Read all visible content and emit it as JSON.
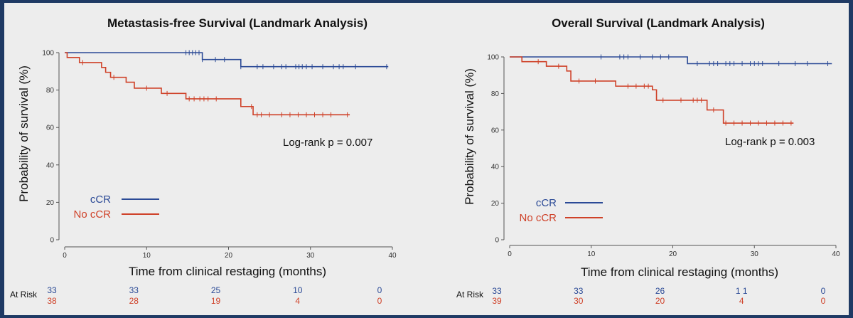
{
  "colors": {
    "cCR": "#2b4a96",
    "No cCR": "#cf4128",
    "axis": "#555555",
    "background": "#ededed",
    "frame": "#1f3a64"
  },
  "at_risk_label": "At Risk",
  "chart_data": [
    {
      "type": "line",
      "subtype": "kaplan-meier",
      "title": "Metastasis-free Survival (Landmark Analysis)",
      "xlabel": "Time from clinical restaging (months)",
      "ylabel": "Probability of survival (%)",
      "xlim": [
        0,
        40
      ],
      "ylim": [
        0,
        100
      ],
      "xticks": [
        0,
        10,
        20,
        30,
        40
      ],
      "yticks": [
        0,
        20,
        40,
        60,
        80,
        100
      ],
      "annotation": "Log-rank p = 0.007",
      "legend_position": "bottom-left",
      "series": [
        {
          "name": "cCR",
          "steps": [
            [
              0,
              100
            ],
            [
              16.8,
              96.3
            ],
            [
              21.5,
              92.5
            ],
            [
              39.5,
              92.5
            ]
          ],
          "censor_x": [
            14.8,
            15.2,
            15.6,
            16.0,
            16.4,
            16.8,
            18.4,
            19.5,
            21.5,
            23.5,
            24.2,
            25.5,
            26.5,
            27.0,
            28.2,
            28.6,
            29.0,
            29.5,
            30.2,
            31.5,
            32.8,
            33.5,
            34.0,
            35.5,
            39.3
          ]
        },
        {
          "name": "No cCR",
          "steps": [
            [
              0,
              100
            ],
            [
              0.3,
              97.4
            ],
            [
              1.8,
              94.7
            ],
            [
              4.5,
              92.1
            ],
            [
              5.0,
              89.5
            ],
            [
              5.6,
              86.8
            ],
            [
              7.5,
              84.2
            ],
            [
              8.5,
              81.0
            ],
            [
              11.8,
              78.2
            ],
            [
              14.8,
              75.3
            ],
            [
              21.5,
              71.2
            ],
            [
              23.0,
              66.8
            ],
            [
              34.8,
              66.8
            ]
          ],
          "censor_x": [
            2.2,
            6.0,
            10.0,
            12.5,
            15.2,
            15.8,
            16.5,
            17.0,
            17.5,
            18.5,
            22.8,
            23.5,
            24.0,
            25.0,
            26.5,
            27.5,
            28.5,
            29.5,
            30.5,
            31.5,
            32.5,
            34.5
          ]
        }
      ],
      "at_risk": {
        "times": [
          0,
          10,
          20,
          30,
          40
        ],
        "cCR": [
          "33",
          "33",
          "25",
          "10",
          "0"
        ],
        "No cCR": [
          "38",
          "28",
          "19",
          "4",
          "0"
        ]
      }
    },
    {
      "type": "line",
      "subtype": "kaplan-meier",
      "title": "Overall Survival (Landmark Analysis)",
      "xlabel": "Time from clinical restaging (months)",
      "ylabel": "Probability of survival (%)",
      "xlim": [
        0,
        40
      ],
      "ylim": [
        0,
        100
      ],
      "xticks": [
        0,
        10,
        20,
        30,
        40
      ],
      "yticks": [
        0,
        20,
        40,
        60,
        80,
        100
      ],
      "annotation": "Log-rank p = 0.003",
      "legend_position": "bottom-left",
      "series": [
        {
          "name": "cCR",
          "steps": [
            [
              0,
              100
            ],
            [
              21.8,
              96.3
            ],
            [
              39.5,
              96.3
            ]
          ],
          "censor_x": [
            11.2,
            13.5,
            14.0,
            14.5,
            16.0,
            17.5,
            18.5,
            19.5,
            23.0,
            24.5,
            25.0,
            25.5,
            26.5,
            27.0,
            27.5,
            28.5,
            29.5,
            30.0,
            30.5,
            31.0,
            33.0,
            35.0,
            36.5,
            39.0
          ]
        },
        {
          "name": "No cCR",
          "steps": [
            [
              0,
              100
            ],
            [
              1.5,
              97.4
            ],
            [
              4.5,
              94.9
            ],
            [
              7.0,
              92.3
            ],
            [
              7.5,
              86.8
            ],
            [
              13.0,
              84.0
            ],
            [
              17.5,
              82.0
            ],
            [
              18.0,
              76.3
            ],
            [
              24.2,
              71.0
            ],
            [
              26.2,
              63.8
            ],
            [
              34.8,
              63.8
            ]
          ],
          "censor_x": [
            3.5,
            6.0,
            8.5,
            10.5,
            14.5,
            15.5,
            16.5,
            17.0,
            18.8,
            21.0,
            22.5,
            23.0,
            23.5,
            25.0,
            26.5,
            27.5,
            28.5,
            29.5,
            30.5,
            31.5,
            32.5,
            33.5,
            34.5
          ]
        }
      ],
      "at_risk": {
        "times": [
          0,
          10,
          20,
          30,
          40
        ],
        "cCR": [
          "33",
          "33",
          "26",
          "1 1",
          "0"
        ],
        "No cCR": [
          "39",
          "30",
          "20",
          "4",
          "0"
        ]
      }
    }
  ]
}
